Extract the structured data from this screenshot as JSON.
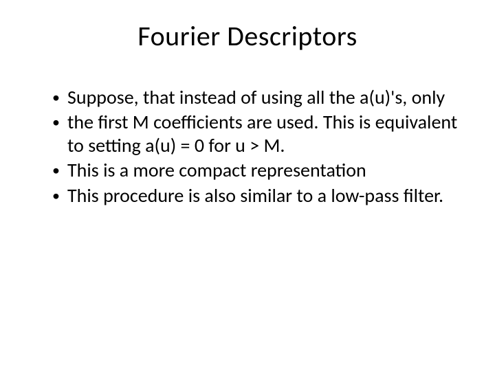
{
  "slide": {
    "title": "Fourier Descriptors",
    "bullets": [
      "Suppose, that instead of using all the a(u)'s, only",
      "the first M coefficients are used. This is equivalent to setting a(u) = 0 for u > M.",
      "This is a more compact representation",
      "This procedure is also similar to a low-pass filter."
    ],
    "background_color": "#ffffff",
    "text_color": "#000000",
    "title_fontsize": 40,
    "body_fontsize": 28,
    "font_family": "Calibri"
  }
}
